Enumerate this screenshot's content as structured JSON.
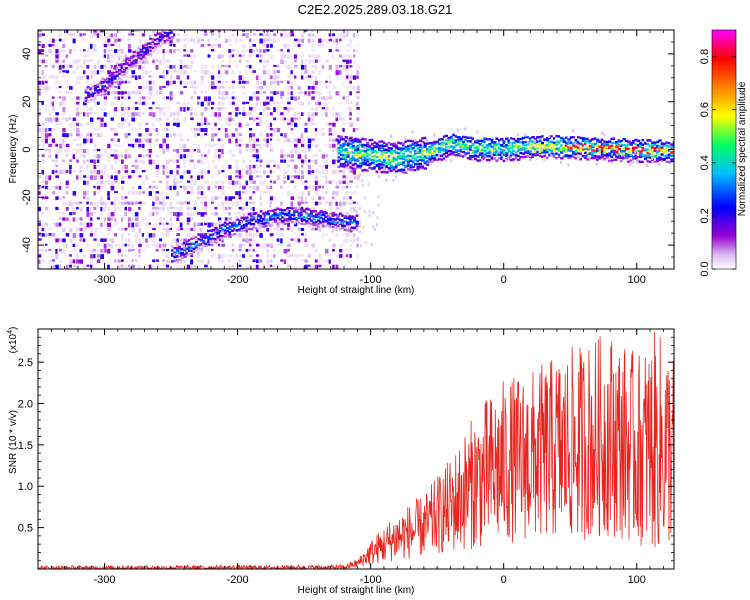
{
  "title": "C2E2.2025.289.03.18.G21",
  "chart_data": [
    {
      "type": "heatmap",
      "name": "spectrogram",
      "xlabel": "Height of straight line (km)",
      "ylabel": "Frequency (Hz)",
      "xlim": [
        -350,
        128
      ],
      "ylim": [
        -50,
        50
      ],
      "xticks": [
        -300,
        -200,
        -100,
        0,
        100
      ],
      "yticks": [
        -40,
        -20,
        0,
        20,
        40
      ],
      "xtick_labels": [
        "-300",
        "-200",
        "-100",
        "0",
        "100"
      ],
      "ytick_labels": [
        "-40",
        "-20",
        "0",
        "20",
        "40"
      ],
      "noise_region_x": [
        -350,
        -110
      ],
      "signal_region_x": [
        -125,
        128
      ],
      "tracks": [
        {
          "name": "upper-doppler-track",
          "points": [
            [
              -315,
              23
            ],
            [
              -300,
              28
            ],
            [
              -285,
              36
            ],
            [
              -270,
              42
            ],
            [
              -260,
              47
            ],
            [
              -250,
              50
            ]
          ],
          "amplitude": 0.25
        },
        {
          "name": "lower-doppler-track",
          "points": [
            [
              -250,
              -44
            ],
            [
              -230,
              -38
            ],
            [
              -210,
              -33
            ],
            [
              -190,
              -29
            ],
            [
              -170,
              -27
            ],
            [
              -150,
              -27
            ],
            [
              -130,
              -29
            ],
            [
              -110,
              -30
            ]
          ],
          "amplitude": 0.35
        },
        {
          "name": "main-signal-band",
          "points": [
            [
              -125,
              0
            ],
            [
              -100,
              -2
            ],
            [
              -80,
              -3
            ],
            [
              -60,
              -1
            ],
            [
              -40,
              3
            ],
            [
              -20,
              1
            ],
            [
              0,
              1
            ],
            [
              20,
              2
            ],
            [
              40,
              2
            ],
            [
              60,
              1.5
            ],
            [
              80,
              1
            ],
            [
              100,
              0.5
            ],
            [
              128,
              0
            ]
          ],
          "amplitude": 0.55
        }
      ]
    },
    {
      "type": "colorbar",
      "name": "colorbar",
      "label": "Normalized spectral amplitude",
      "range": [
        0.0,
        0.9
      ],
      "ticks": [
        0.0,
        0.2,
        0.4,
        0.6,
        0.8
      ],
      "tick_labels": [
        "0.0",
        "0.2",
        "0.4",
        "0.6",
        "0.8"
      ],
      "colors": [
        "#ffffff",
        "#9400d3",
        "#0000ff",
        "#00bfff",
        "#00ff00",
        "#ffff00",
        "#ff8000",
        "#ff0000",
        "#ff00ff"
      ]
    },
    {
      "type": "line",
      "name": "snr-line",
      "xlabel": "Height of straight line (km)",
      "ylabel": "SNR (10 * v/v)",
      "scale_label": "(x10",
      "scale_exp": "4",
      "scale_close": ")",
      "xlim": [
        -350,
        128
      ],
      "ylim": [
        0,
        2.9
      ],
      "xticks": [
        -300,
        -200,
        -100,
        0,
        100
      ],
      "yticks": [
        0.5,
        1.0,
        1.5,
        2.0,
        2.5
      ],
      "xtick_labels": [
        "-300",
        "-200",
        "-100",
        "0",
        "100"
      ],
      "ytick_labels": [
        "0.5",
        "1.0",
        "1.5",
        "2.0",
        "2.5"
      ],
      "color": "#e8251d",
      "envelope": {
        "x": [
          -350,
          -120,
          -110,
          -100,
          -80,
          -60,
          -40,
          -20,
          0,
          20,
          40,
          60,
          80,
          100,
          115,
          128
        ],
        "max": [
          0.04,
          0.05,
          0.12,
          0.35,
          0.7,
          0.9,
          1.35,
          1.95,
          2.3,
          2.4,
          2.6,
          2.75,
          2.9,
          2.6,
          2.9,
          2.65
        ],
        "min": [
          0.0,
          0.0,
          0.02,
          0.05,
          0.1,
          0.15,
          0.2,
          0.25,
          0.3,
          0.35,
          0.35,
          0.35,
          0.4,
          0.3,
          0.2,
          0.3
        ]
      }
    }
  ]
}
